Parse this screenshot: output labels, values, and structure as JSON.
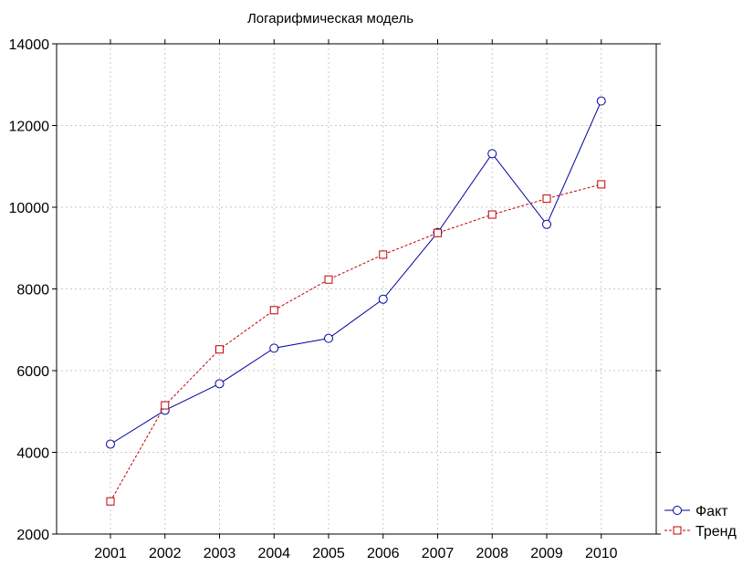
{
  "chart_data": {
    "type": "line",
    "title": "Логарифмическая модель",
    "xlabel": "",
    "ylabel": "",
    "categories": [
      "2001",
      "2002",
      "2003",
      "2004",
      "2005",
      "2006",
      "2007",
      "2008",
      "2009",
      "2010"
    ],
    "ylim": [
      2000,
      14000
    ],
    "yticks": [
      2000,
      4000,
      6000,
      8000,
      10000,
      12000,
      14000
    ],
    "grid": true,
    "legend_position": "bottom-right",
    "series": [
      {
        "name": "Факт",
        "color": "#0000a0",
        "marker": "circle",
        "line_style": "solid",
        "values": [
          4200,
          5030,
          5680,
          6550,
          6790,
          7750,
          9380,
          11310,
          9580,
          12600
        ]
      },
      {
        "name": "Тренд",
        "color": "#c00000",
        "marker": "square",
        "line_style": "dashed",
        "values": [
          2800,
          5150,
          6520,
          7480,
          8230,
          8840,
          9370,
          9820,
          10210,
          10560
        ]
      }
    ]
  }
}
